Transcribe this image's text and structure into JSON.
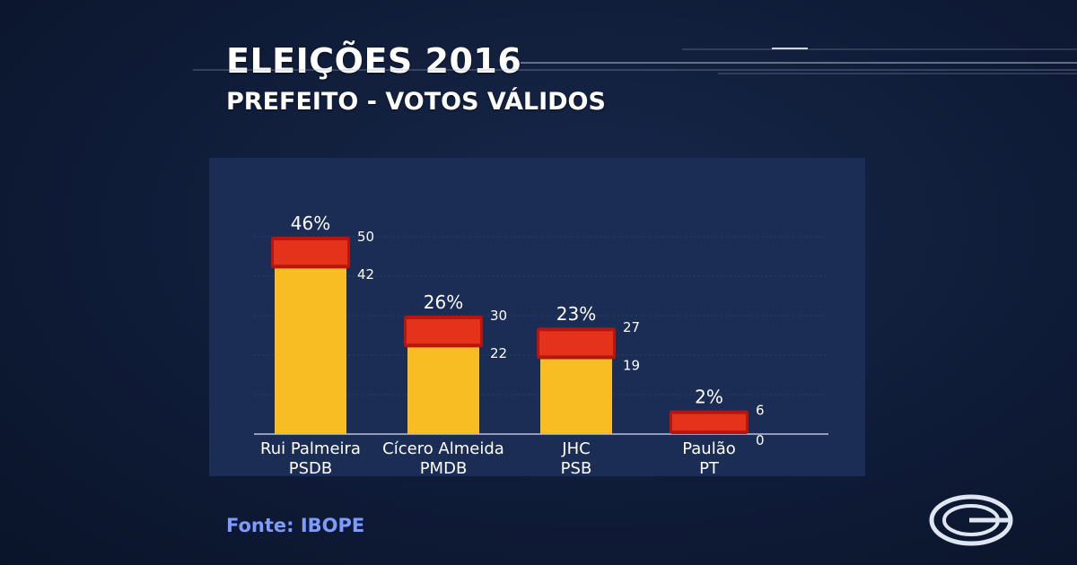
{
  "header": {
    "title": "ELEIÇÕES 2016",
    "subtitle": "PREFEITO - VOTOS VÁLIDOS"
  },
  "footer": {
    "source": "Fonte: IBOPE"
  },
  "colors": {
    "bar": "#f7bd22",
    "margin_band": "#e4321b",
    "margin_band_dark": "#b9140d",
    "panel": "#1b2d55",
    "source_text": "#7e9cff"
  },
  "chart_data": {
    "type": "bar",
    "title": "PREFEITO - VOTOS VÁLIDOS",
    "xlabel": "",
    "ylabel": "",
    "ylim": [
      0,
      50
    ],
    "grid": true,
    "categories": [
      {
        "name": "Rui Palmeira",
        "party": "PSDB"
      },
      {
        "name": "Cícero Almeida",
        "party": "PMDB"
      },
      {
        "name": "JHC",
        "party": "PSB"
      },
      {
        "name": "Paulão",
        "party": "PT"
      }
    ],
    "values": [
      46,
      26,
      23,
      2
    ],
    "value_labels": [
      "46%",
      "26%",
      "23%",
      "2%"
    ],
    "error_low": [
      42,
      22,
      19,
      0
    ],
    "error_high": [
      50,
      30,
      27,
      6
    ]
  }
}
